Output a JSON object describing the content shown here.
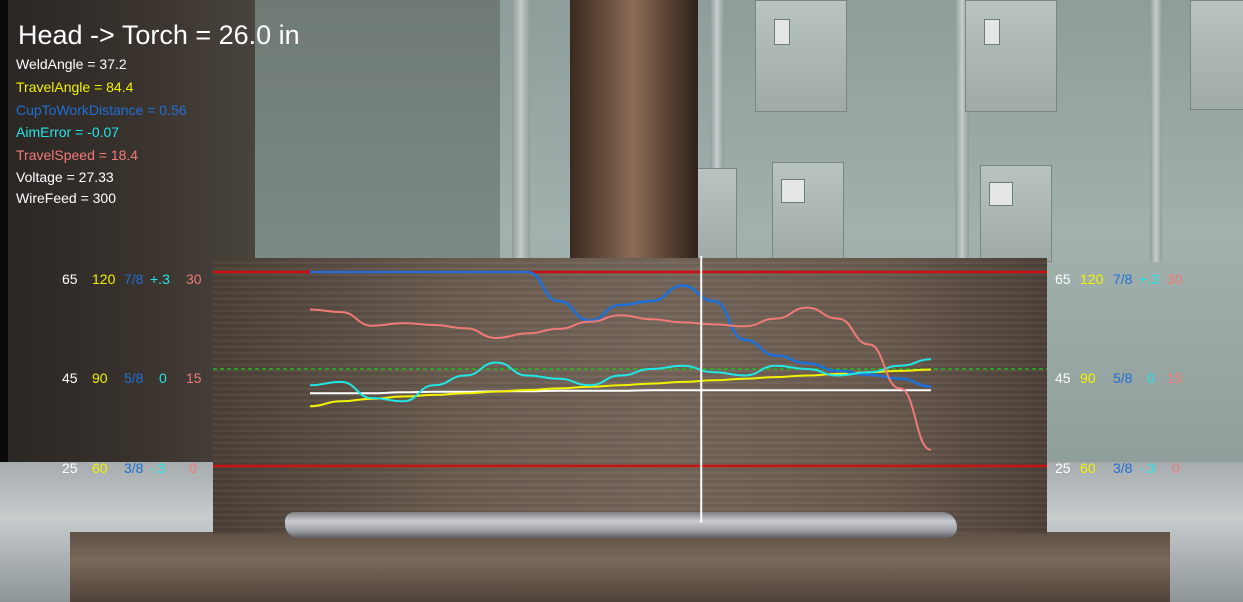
{
  "headline": "Head -> Torch = 26.0 in",
  "readouts": [
    {
      "text": "WeldAngle = 37.2",
      "color": "#ffffff"
    },
    {
      "text": "TravelAngle = 84.4",
      "color": "#f2f200"
    },
    {
      "text": "CupToWorkDistance = 0.56",
      "color": "#1f6fd6"
    },
    {
      "text": "AimError = -0.07",
      "color": "#22e6e6"
    },
    {
      "text": "TravelSpeed = 18.4",
      "color": "#f07a78"
    },
    {
      "text": "Voltage = 27.33",
      "color": "#ffffff"
    },
    {
      "text": "WireFeed =  300",
      "color": "#ffffff"
    }
  ],
  "scale_left": {
    "top": [
      "65",
      "120",
      "7/8",
      "+.3",
      "30"
    ],
    "middle": [
      "45",
      "90",
      "5/8",
      "0",
      "15"
    ],
    "bottom": [
      "25",
      "60",
      "3/8",
      "-.3",
      "0"
    ]
  },
  "scale_right": {
    "top": [
      "65",
      "120",
      "7/8",
      "+.3",
      "30"
    ],
    "middle": [
      "45",
      "90",
      "5/8",
      "0",
      "15"
    ],
    "bottom": [
      "25",
      "60",
      "3/8",
      "-.3",
      "0"
    ]
  },
  "scale_colors": [
    "#ffffff",
    "#f2f200",
    "#1f6fd6",
    "#22e6e6",
    "#f07a78"
  ],
  "colors": {
    "limit_line": "#cc1111",
    "target_line": "#22bb22",
    "cursor": "#ffffff"
  },
  "chart_data": {
    "type": "line",
    "x": [
      0,
      5,
      10,
      15,
      20,
      25,
      30,
      35,
      40,
      45,
      50,
      55,
      60,
      65,
      70,
      75,
      80,
      85,
      90,
      95,
      100
    ],
    "cursor_x": 63,
    "scale_ticks": [
      "25",
      "45",
      "65"
    ],
    "series": [
      {
        "key": "weld_angle",
        "color": "#ffffff",
        "values": [
          40,
          40,
          40,
          40.2,
          40.3,
          40.3,
          40.4,
          40.4,
          40.5,
          40.5,
          40.5,
          40.6,
          40.6,
          40.6,
          40.6,
          40.6,
          40.6,
          40.6,
          40.6,
          40.6,
          40.6
        ]
      },
      {
        "key": "travel_angle",
        "color": "#f2f200",
        "values": [
          78.5,
          80,
          80.8,
          81.5,
          82,
          82.5,
          83,
          83.5,
          84,
          84.5,
          85,
          85.5,
          86,
          86.5,
          87,
          87.5,
          88,
          88.5,
          89,
          89.4,
          89.8
        ]
      },
      {
        "key": "cup_to_work",
        "color": "#1f6fd6",
        "values": [
          0.875,
          0.875,
          0.875,
          0.875,
          0.875,
          0.875,
          0.875,
          0.875,
          0.8,
          0.75,
          0.79,
          0.8,
          0.84,
          0.8,
          0.7,
          0.66,
          0.64,
          0.62,
          0.61,
          0.6,
          0.58
        ]
      },
      {
        "key": "aim_error",
        "color": "#22e6e6",
        "values": [
          -0.05,
          -0.04,
          -0.09,
          -0.1,
          -0.05,
          -0.02,
          0.02,
          -0.02,
          -0.03,
          -0.05,
          -0.02,
          0.0,
          0.01,
          -0.01,
          -0.02,
          0.01,
          0.0,
          -0.02,
          -0.01,
          0.01,
          0.03
        ]
      },
      {
        "key": "travel_speed",
        "color": "#f07a78",
        "values": [
          24.2,
          23.8,
          21.7,
          22.1,
          21.8,
          21.3,
          19.8,
          20.5,
          21.2,
          22.3,
          23.3,
          22.7,
          22.2,
          21.9,
          21.6,
          22.8,
          24.5,
          22.8,
          18.8,
          12,
          2.5
        ]
      }
    ]
  }
}
